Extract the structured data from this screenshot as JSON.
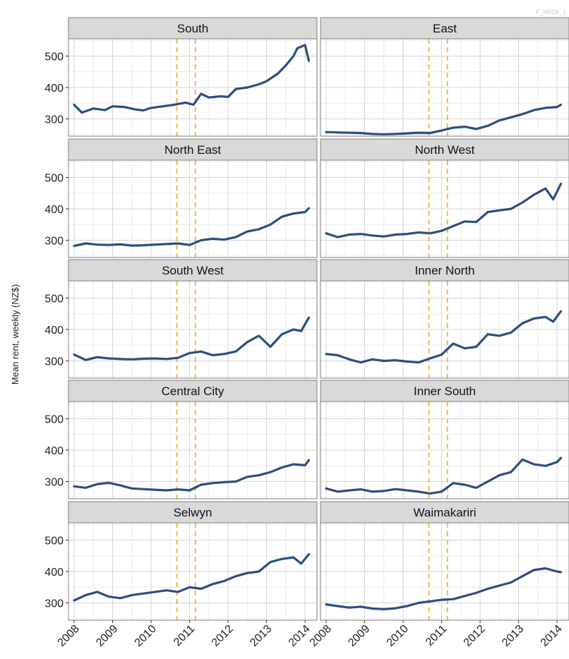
{
  "figure_id": "F_H01B_1",
  "chart_data": {
    "type": "line",
    "layout": "facet-grid",
    "facet_columns": 2,
    "ylabel": "Mean rent, weekly (NZ$)",
    "xlabel": "",
    "x_ticks": [
      "2008",
      "2009",
      "2010",
      "2011",
      "2012",
      "2013",
      "2014"
    ],
    "xlim": [
      2008.0,
      2014.2
    ],
    "y_ticks": [
      300,
      400,
      500
    ],
    "ylim": [
      245,
      555
    ],
    "grid": true,
    "legend": "none",
    "reference_lines": [
      2010.67,
      2011.15
    ],
    "colors": {
      "series": "#2c4f7c",
      "reference": "#f0b84a",
      "panel_bg": "#ffffff",
      "grid_major": "#d4d4d4",
      "grid_minor": "#ececec",
      "panel_border": "#7f7f7f",
      "strip_bg": "#d9d9d9"
    },
    "panels": [
      {
        "title": "South",
        "x": [
          2008.0,
          2008.2,
          2008.5,
          2008.8,
          2009.0,
          2009.3,
          2009.6,
          2009.8,
          2010.0,
          2010.3,
          2010.6,
          2010.9,
          2011.1,
          2011.3,
          2011.5,
          2011.8,
          2012.0,
          2012.2,
          2012.5,
          2012.8,
          2013.0,
          2013.3,
          2013.5,
          2013.7,
          2013.8,
          2014.0,
          2014.1
        ],
        "y": [
          345,
          320,
          333,
          328,
          340,
          338,
          330,
          327,
          335,
          340,
          345,
          352,
          345,
          380,
          368,
          372,
          370,
          395,
          400,
          410,
          420,
          445,
          470,
          500,
          525,
          535,
          485
        ]
      },
      {
        "title": "East",
        "x": [
          2008.0,
          2008.3,
          2008.6,
          2008.9,
          2009.2,
          2009.5,
          2009.8,
          2010.1,
          2010.4,
          2010.7,
          2011.0,
          2011.3,
          2011.6,
          2011.9,
          2012.2,
          2012.5,
          2012.8,
          2013.1,
          2013.4,
          2013.7,
          2014.0,
          2014.1
        ],
        "y": [
          258,
          257,
          256,
          255,
          252,
          251,
          252,
          254,
          256,
          255,
          263,
          272,
          275,
          268,
          278,
          295,
          305,
          315,
          328,
          335,
          338,
          345
        ]
      },
      {
        "title": "North East",
        "x": [
          2008.0,
          2008.3,
          2008.6,
          2008.9,
          2009.2,
          2009.5,
          2009.8,
          2010.1,
          2010.4,
          2010.7,
          2011.0,
          2011.3,
          2011.6,
          2011.9,
          2012.2,
          2012.5,
          2012.8,
          2013.1,
          2013.4,
          2013.7,
          2014.0,
          2014.1
        ],
        "y": [
          282,
          290,
          286,
          285,
          287,
          283,
          284,
          286,
          288,
          290,
          285,
          300,
          305,
          302,
          310,
          328,
          335,
          350,
          375,
          385,
          390,
          402
        ]
      },
      {
        "title": "North West",
        "x": [
          2008.0,
          2008.3,
          2008.6,
          2008.9,
          2009.2,
          2009.5,
          2009.8,
          2010.1,
          2010.4,
          2010.7,
          2011.0,
          2011.3,
          2011.6,
          2011.9,
          2012.2,
          2012.5,
          2012.8,
          2013.1,
          2013.4,
          2013.7,
          2013.9,
          2014.1
        ],
        "y": [
          322,
          310,
          318,
          320,
          315,
          312,
          318,
          320,
          325,
          322,
          330,
          345,
          360,
          358,
          390,
          395,
          400,
          420,
          445,
          465,
          430,
          480
        ]
      },
      {
        "title": "South West",
        "x": [
          2008.0,
          2008.3,
          2008.6,
          2008.9,
          2009.2,
          2009.5,
          2009.8,
          2010.1,
          2010.4,
          2010.7,
          2011.0,
          2011.3,
          2011.6,
          2011.9,
          2012.2,
          2012.5,
          2012.8,
          2013.1,
          2013.4,
          2013.7,
          2013.9,
          2014.1
        ],
        "y": [
          320,
          303,
          312,
          308,
          306,
          305,
          307,
          308,
          306,
          310,
          325,
          330,
          318,
          322,
          330,
          360,
          380,
          345,
          385,
          400,
          395,
          438
        ]
      },
      {
        "title": "Inner North",
        "x": [
          2008.0,
          2008.3,
          2008.6,
          2008.9,
          2009.2,
          2009.5,
          2009.8,
          2010.1,
          2010.4,
          2010.7,
          2011.0,
          2011.3,
          2011.6,
          2011.9,
          2012.2,
          2012.5,
          2012.8,
          2013.1,
          2013.4,
          2013.7,
          2013.9,
          2014.1
        ],
        "y": [
          322,
          318,
          305,
          295,
          305,
          300,
          302,
          298,
          295,
          308,
          320,
          355,
          340,
          345,
          385,
          380,
          390,
          420,
          435,
          440,
          425,
          458
        ]
      },
      {
        "title": "Central City",
        "x": [
          2008.0,
          2008.3,
          2008.6,
          2008.9,
          2009.2,
          2009.5,
          2009.8,
          2010.1,
          2010.4,
          2010.7,
          2011.0,
          2011.3,
          2011.6,
          2011.9,
          2012.2,
          2012.5,
          2012.8,
          2013.1,
          2013.4,
          2013.7,
          2014.0,
          2014.1
        ],
        "y": [
          285,
          280,
          292,
          296,
          288,
          278,
          276,
          274,
          272,
          275,
          272,
          290,
          295,
          298,
          300,
          315,
          320,
          330,
          345,
          355,
          352,
          368
        ]
      },
      {
        "title": "Inner South",
        "x": [
          2008.0,
          2008.3,
          2008.6,
          2008.9,
          2009.2,
          2009.5,
          2009.8,
          2010.1,
          2010.4,
          2010.7,
          2011.0,
          2011.3,
          2011.6,
          2011.9,
          2012.2,
          2012.5,
          2012.8,
          2013.1,
          2013.4,
          2013.7,
          2014.0,
          2014.1
        ],
        "y": [
          278,
          268,
          272,
          275,
          268,
          270,
          276,
          272,
          268,
          262,
          268,
          295,
          290,
          280,
          300,
          320,
          330,
          370,
          355,
          350,
          362,
          375
        ]
      },
      {
        "title": "Selwyn",
        "x": [
          2008.0,
          2008.3,
          2008.6,
          2008.9,
          2009.2,
          2009.5,
          2009.8,
          2010.1,
          2010.4,
          2010.7,
          2011.0,
          2011.3,
          2011.6,
          2011.9,
          2012.2,
          2012.5,
          2012.8,
          2013.1,
          2013.4,
          2013.7,
          2013.9,
          2014.1
        ],
        "y": [
          308,
          325,
          335,
          320,
          315,
          325,
          330,
          335,
          340,
          335,
          350,
          345,
          360,
          370,
          385,
          395,
          400,
          430,
          440,
          445,
          425,
          455
        ]
      },
      {
        "title": "Waimakariri",
        "x": [
          2008.0,
          2008.3,
          2008.6,
          2008.9,
          2009.2,
          2009.5,
          2009.8,
          2010.1,
          2010.4,
          2010.7,
          2011.0,
          2011.3,
          2011.6,
          2011.9,
          2012.2,
          2012.5,
          2012.8,
          2013.1,
          2013.4,
          2013.7,
          2014.0,
          2014.1
        ],
        "y": [
          295,
          290,
          285,
          288,
          282,
          280,
          283,
          290,
          300,
          305,
          310,
          312,
          322,
          332,
          345,
          355,
          365,
          385,
          405,
          410,
          400,
          398
        ]
      }
    ]
  }
}
